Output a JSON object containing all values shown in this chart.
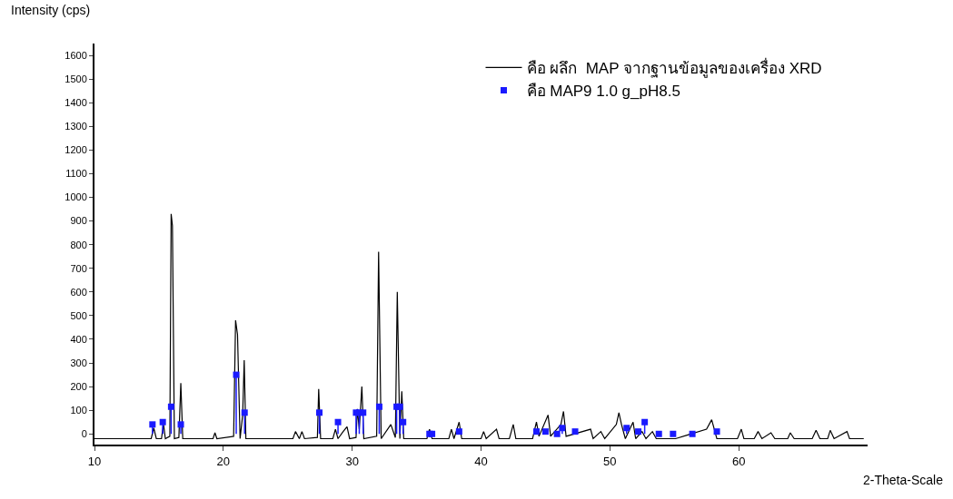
{
  "chart_data": {
    "type": "line",
    "xlabel": "2-Theta-Scale",
    "ylabel": "Intensity (cps)",
    "xlim": [
      10,
      70
    ],
    "xticks": [
      10,
      20,
      30,
      40,
      50,
      60
    ],
    "ylim": [
      -45,
      1650
    ],
    "yticks": [
      0,
      100,
      200,
      300,
      400,
      500,
      600,
      700,
      800,
      900,
      1000,
      1100,
      1200,
      1300,
      1400,
      1500,
      1600
    ],
    "grid": false,
    "legend": "top right",
    "tick_labels": "xy",
    "series": [
      {
        "name": "คือ ผลึก  MAP จากฐานข้อมูลของเครื่อง XRD",
        "color": "#000000",
        "line_style": "solid",
        "marker": "none",
        "x": [
          10,
          14.4,
          14.6,
          14.8,
          15.2,
          15.35,
          15.5,
          15.85,
          15.95,
          16.05,
          16.2,
          16.55,
          16.7,
          16.85,
          19.2,
          19.35,
          19.5,
          20.8,
          20.95,
          21.1,
          21.3,
          21.5,
          21.62,
          21.75,
          25.4,
          25.6,
          25.9,
          26.1,
          26.3,
          27.3,
          27.4,
          27.55,
          28.5,
          28.7,
          28.9,
          29.3,
          29.6,
          29.8,
          30.3,
          30.4,
          30.55,
          30.75,
          30.9,
          31.9,
          32.05,
          32.25,
          33.0,
          33.35,
          33.5,
          33.7,
          33.85,
          34.0,
          35.8,
          36.0,
          36.2,
          37.5,
          37.7,
          37.9,
          38.3,
          38.5,
          40.0,
          40.2,
          40.4,
          41.2,
          41.4,
          42.2,
          42.5,
          42.7,
          44.0,
          44.3,
          44.5,
          45.2,
          45.4,
          46.2,
          46.4,
          46.6,
          48.5,
          48.7,
          49.3,
          49.6,
          50.5,
          50.7,
          50.9,
          51.2,
          51.8,
          52.0,
          52.5,
          52.8,
          53.3,
          53.6,
          55.1,
          57.5,
          57.9,
          58.3,
          59.9,
          60.2,
          60.4,
          61.2,
          61.5,
          61.8,
          62.5,
          62.8,
          63.8,
          64.0,
          64.3,
          65.7,
          66.0,
          66.3,
          66.9,
          67.1,
          67.4,
          68.4,
          68.6,
          69.7
        ],
        "values": [
          -20,
          -20,
          25,
          -20,
          -20,
          45,
          -20,
          -10,
          930,
          880,
          -20,
          -15,
          215,
          -20,
          -20,
          5,
          -20,
          -10,
          480,
          420,
          -20,
          80,
          312,
          -20,
          -20,
          10,
          -20,
          10,
          -20,
          -15,
          190,
          -20,
          -20,
          20,
          -20,
          10,
          30,
          -20,
          -15,
          105,
          20,
          200,
          -20,
          -10,
          770,
          -20,
          40,
          -15,
          600,
          -20,
          180,
          -20,
          -20,
          20,
          -20,
          -20,
          20,
          -20,
          50,
          -20,
          -20,
          10,
          -20,
          20,
          -20,
          -20,
          40,
          -20,
          -20,
          50,
          -10,
          80,
          -10,
          40,
          95,
          -10,
          20,
          -20,
          10,
          -20,
          40,
          90,
          40,
          -20,
          50,
          -20,
          10,
          -20,
          10,
          -20,
          -20,
          20,
          60,
          -20,
          -20,
          20,
          -20,
          -20,
          10,
          -20,
          5,
          -20,
          -20,
          5,
          -20,
          -20,
          15,
          -20,
          -20,
          15,
          -20,
          10,
          -20,
          -20
        ]
      },
      {
        "name": "คือ MAP9 1.0 g_pH8.5",
        "type": "lollipop",
        "color": "#1a1aff",
        "marker": "square",
        "x": [
          14.5,
          15.3,
          15.95,
          16.7,
          21.0,
          21.65,
          27.45,
          28.9,
          30.3,
          30.55,
          30.85,
          32.1,
          33.45,
          33.7,
          33.95,
          36.0,
          36.2,
          38.3,
          44.3,
          45.0,
          45.9,
          46.3,
          47.3,
          51.3,
          52.2,
          52.7,
          53.8,
          54.9,
          56.4,
          58.3
        ],
        "values": [
          40,
          50,
          115,
          40,
          250,
          90,
          90,
          50,
          90,
          90,
          90,
          115,
          115,
          115,
          50,
          0,
          0,
          10,
          10,
          10,
          0,
          25,
          10,
          25,
          10,
          50,
          0,
          0,
          0,
          10
        ]
      }
    ]
  }
}
